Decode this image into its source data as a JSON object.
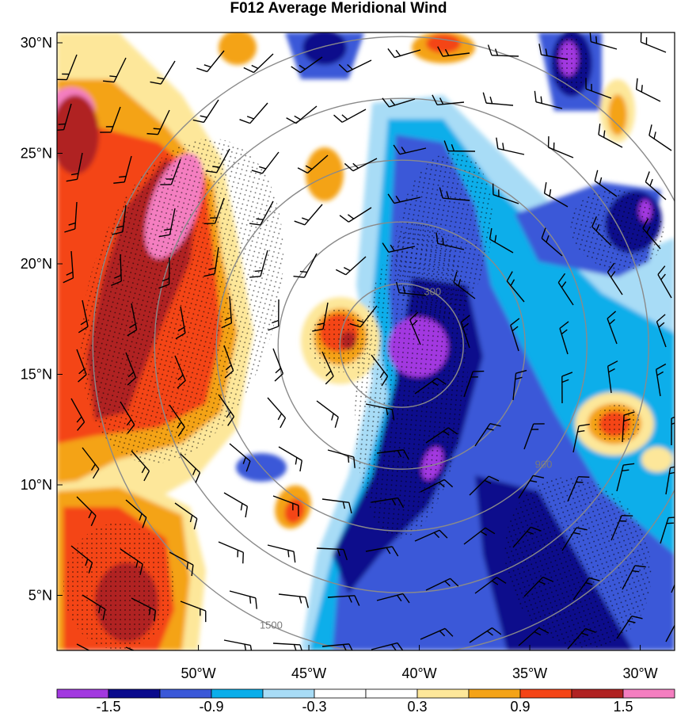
{
  "title": "F012 Average Meridional Wind",
  "map": {
    "lat_ticks": [
      {
        "lat": 30,
        "label": "30°N"
      },
      {
        "lat": 25,
        "label": "25°N"
      },
      {
        "lat": 20,
        "label": "20°N"
      },
      {
        "lat": 15,
        "label": "15°N"
      },
      {
        "lat": 10,
        "label": "10°N"
      },
      {
        "lat": 5,
        "label": "5°N"
      }
    ],
    "lon_ticks": [
      {
        "lon": -50,
        "label": "50°W"
      },
      {
        "lon": -45,
        "label": "45°W"
      },
      {
        "lon": -40,
        "label": "40°W"
      },
      {
        "lon": -35,
        "label": "35°W"
      },
      {
        "lon": -30,
        "label": "30°W"
      }
    ],
    "range_rings": [
      {
        "radius_km": 300,
        "label": "300"
      },
      {
        "radius_km": 600,
        "label": ""
      },
      {
        "radius_km": 900,
        "label": "900"
      },
      {
        "radius_km": 1200,
        "label": ""
      },
      {
        "radius_km": 1500,
        "label": "1500"
      }
    ],
    "storm_center": {
      "lon": -40.8,
      "lat": 16.3
    },
    "grid": false
  },
  "colorbar": {
    "colors": [
      "#a238e0",
      "#0a0a8c",
      "#3a58d8",
      "#0aaeea",
      "#a8dcf6",
      "#ffffff",
      "#ffffff",
      "#fde79a",
      "#f4a318",
      "#f44416",
      "#b02222",
      "#f47ec0"
    ],
    "labels": [
      {
        "value": -1.5,
        "text": "-1.5"
      },
      {
        "value": -0.9,
        "text": "-0.9"
      },
      {
        "value": -0.3,
        "text": "-0.3"
      },
      {
        "value": 0.3,
        "text": "0.3"
      },
      {
        "value": 0.9,
        "text": "0.9"
      },
      {
        "value": 1.5,
        "text": "1.5"
      }
    ]
  }
}
